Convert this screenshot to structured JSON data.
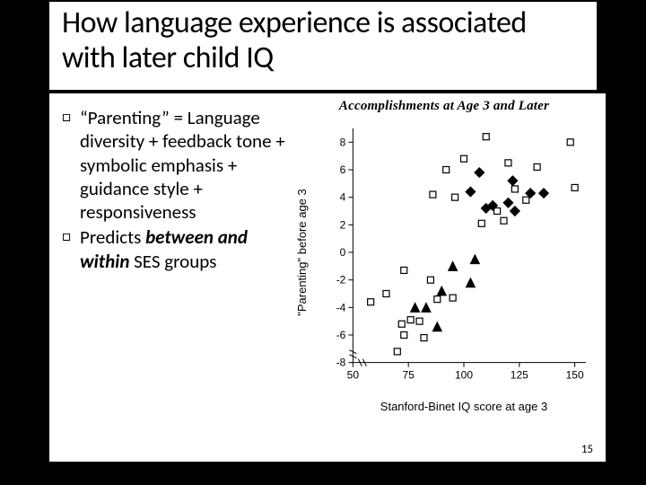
{
  "title": "How language experience is associated with later child IQ",
  "bullets": [
    {
      "glyph": "□",
      "html": "“Parenting” = Language diversity + feedback tone + symbolic emphasis + guidance style + responsiveness"
    },
    {
      "glyph": "□",
      "html": "Predicts <span class=\"bold-em ital-em\">between and within</span> SES groups"
    }
  ],
  "page_number": "15",
  "chart": {
    "type": "scatter",
    "title": "Accomplishments at Age 3 and Later",
    "xlabel": "Stanford-Binet IQ score at age 3",
    "ylabel": "\"Parenting\" before age 3",
    "xlim": [
      45,
      155
    ],
    "ylim": [
      -9,
      9
    ],
    "xticks": [
      50,
      75,
      100,
      125,
      150
    ],
    "yticks": [
      -8,
      -6,
      -4,
      -2,
      0,
      2,
      4,
      6,
      8
    ],
    "background_color": "#ffffff",
    "axis_color": "#000000",
    "series": [
      {
        "name": "group-square",
        "marker": "square",
        "size": 7,
        "fill": "none",
        "stroke": "#000000",
        "points": [
          [
            58,
            -3.6
          ],
          [
            65,
            -3.0
          ],
          [
            70,
            -7.2
          ],
          [
            72,
            -5.2
          ],
          [
            73,
            -1.3
          ],
          [
            73,
            -6.0
          ],
          [
            76,
            -4.9
          ],
          [
            80,
            -5.0
          ],
          [
            82,
            -6.2
          ],
          [
            85,
            -2.0
          ],
          [
            88,
            -3.4
          ],
          [
            95,
            -3.3
          ],
          [
            86,
            4.2
          ],
          [
            92,
            6.0
          ],
          [
            96,
            4.0
          ],
          [
            100,
            6.8
          ],
          [
            108,
            2.1
          ],
          [
            110,
            8.4
          ],
          [
            118,
            2.3
          ],
          [
            115,
            3.0
          ],
          [
            120,
            6.5
          ],
          [
            123,
            4.6
          ],
          [
            128,
            3.8
          ],
          [
            133,
            6.2
          ],
          [
            148,
            8.0
          ],
          [
            150,
            4.7
          ]
        ]
      },
      {
        "name": "group-diamond",
        "marker": "diamond",
        "size": 7,
        "fill": "#000000",
        "stroke": "#000000",
        "points": [
          [
            103,
            4.4
          ],
          [
            107,
            5.8
          ],
          [
            110,
            3.2
          ],
          [
            113,
            3.4
          ],
          [
            120,
            3.6
          ],
          [
            122,
            5.2
          ],
          [
            123,
            3.0
          ],
          [
            130,
            4.3
          ],
          [
            136,
            4.3
          ]
        ]
      },
      {
        "name": "group-triangle",
        "marker": "triangle",
        "size": 8,
        "fill": "#000000",
        "stroke": "#000000",
        "points": [
          [
            78,
            -4.0
          ],
          [
            83,
            -4.0
          ],
          [
            88,
            -5.4
          ],
          [
            90,
            -2.8
          ],
          [
            95,
            -1.0
          ],
          [
            103,
            -2.2
          ],
          [
            105,
            -0.5
          ]
        ]
      }
    ]
  }
}
